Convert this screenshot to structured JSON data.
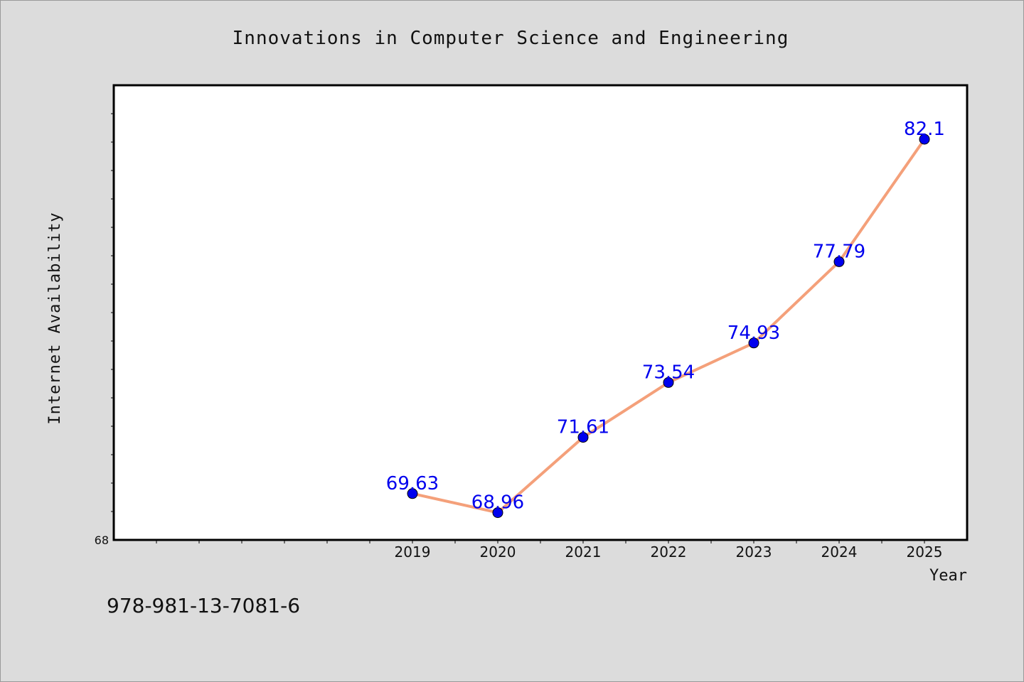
{
  "chart_data": {
    "type": "line",
    "title": "Innovations in Computer Science and Engineering",
    "xlabel": "Year",
    "ylabel": "Internet Availability",
    "categories": [
      "2019",
      "2020",
      "2021",
      "2022",
      "2023",
      "2024",
      "2025"
    ],
    "series": [
      {
        "values": [
          69.63,
          68.96,
          71.61,
          73.54,
          74.93,
          77.79,
          82.1
        ],
        "labels": [
          "69.63",
          "68.96",
          "71.61",
          "73.54",
          "74.93",
          "77.79",
          "82.1"
        ]
      }
    ],
    "x_range": [
      2015.5,
      2025.5
    ],
    "ylim": [
      68,
      84
    ],
    "y_tick_labels": [
      "68"
    ],
    "grid": false,
    "line_color": "#f4a07a",
    "marker_color": "#0000ee",
    "label_color": "#0000ee"
  },
  "footer_text": "978-981-13-7081-6"
}
